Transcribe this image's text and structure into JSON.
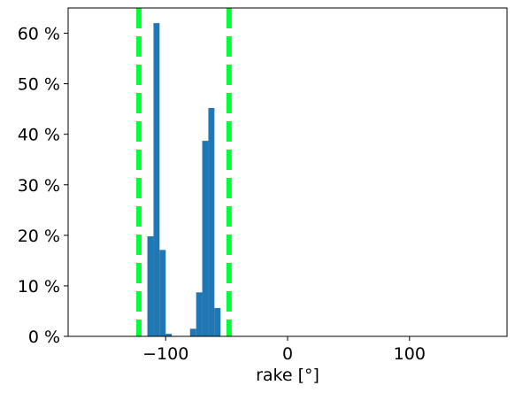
{
  "chart_data": {
    "type": "bar",
    "xlabel": "rake [°]",
    "ylabel": "",
    "xlim": [
      -180,
      180
    ],
    "ylim": [
      0,
      65
    ],
    "bin_width": 5,
    "bins": [
      {
        "x0": -115,
        "x1": -110,
        "value": 19.8
      },
      {
        "x0": -110,
        "x1": -105,
        "value": 62.0
      },
      {
        "x0": -105,
        "x1": -100,
        "value": 17.1
      },
      {
        "x0": -100,
        "x1": -95,
        "value": 0.5
      },
      {
        "x0": -80,
        "x1": -75,
        "value": 1.5
      },
      {
        "x0": -75,
        "x1": -70,
        "value": 8.7
      },
      {
        "x0": -70,
        "x1": -65,
        "value": 38.7
      },
      {
        "x0": -65,
        "x1": -60,
        "value": 45.2
      },
      {
        "x0": -60,
        "x1": -55,
        "value": 5.6
      }
    ],
    "x_ticks": [
      {
        "value": -100,
        "label": "−100"
      },
      {
        "value": 0,
        "label": "0"
      },
      {
        "value": 100,
        "label": "100"
      }
    ],
    "y_ticks": [
      {
        "value": 0,
        "label": "0 %"
      },
      {
        "value": 10,
        "label": "10 %"
      },
      {
        "value": 20,
        "label": "20 %"
      },
      {
        "value": 30,
        "label": "30 %"
      },
      {
        "value": 40,
        "label": "40 %"
      },
      {
        "value": 50,
        "label": "50 %"
      },
      {
        "value": 60,
        "label": "60 %"
      }
    ],
    "reference_lines": [
      {
        "x": -122,
        "style": "dashed"
      },
      {
        "x": -48,
        "style": "dashed"
      }
    ],
    "colors": {
      "bars": "#1f77b4",
      "reference_lines": "#00ff33"
    },
    "grid": false,
    "legend": "none"
  }
}
